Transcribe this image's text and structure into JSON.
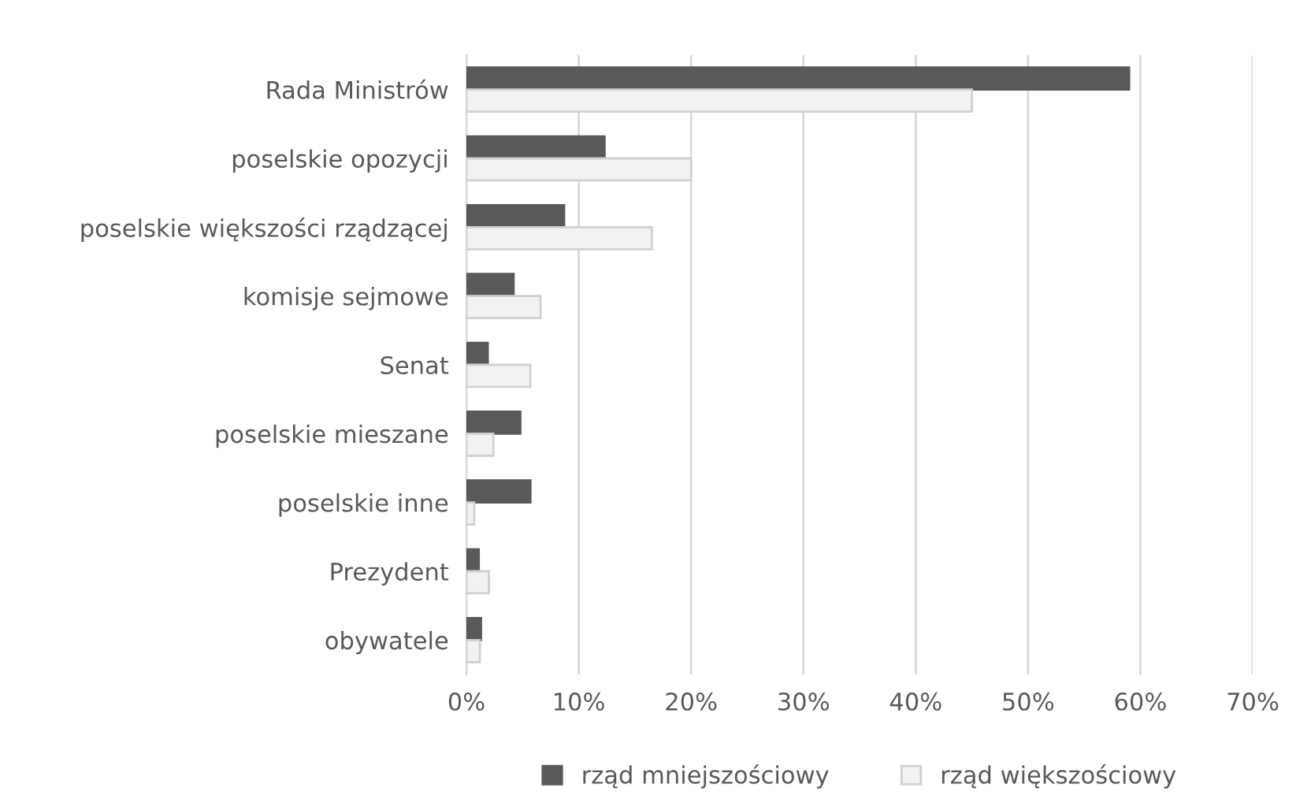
{
  "chart_data": {
    "type": "bar",
    "orientation": "horizontal",
    "categories": [
      "Rada Ministrów",
      "poselskie opozycji",
      "poselskie większości rządzącej",
      "komisje sejmowe",
      "Senat",
      "poselskie mieszane",
      "poselskie inne",
      "Prezydent",
      "obywatele"
    ],
    "series": [
      {
        "name": "rząd mniejszościowy",
        "color": "#595959",
        "values": [
          59,
          12.3,
          8.7,
          4.2,
          1.9,
          4.8,
          5.7,
          1.1,
          1.3
        ]
      },
      {
        "name": "rząd większościowy",
        "color": "#f2f2f2",
        "values": [
          45,
          20,
          16.5,
          6.6,
          5.7,
          2.4,
          0.7,
          2.0,
          1.2
        ]
      }
    ],
    "xlim": [
      0,
      70
    ],
    "xticks": [
      {
        "value": 0,
        "label": "0%"
      },
      {
        "value": 10,
        "label": "10%"
      },
      {
        "value": 20,
        "label": "20%"
      },
      {
        "value": 30,
        "label": "30%"
      },
      {
        "value": 40,
        "label": "40%"
      },
      {
        "value": 50,
        "label": "50%"
      },
      {
        "value": 60,
        "label": "60%"
      },
      {
        "value": 70,
        "label": "70%"
      }
    ],
    "grid": "x",
    "legend": "bottom"
  }
}
